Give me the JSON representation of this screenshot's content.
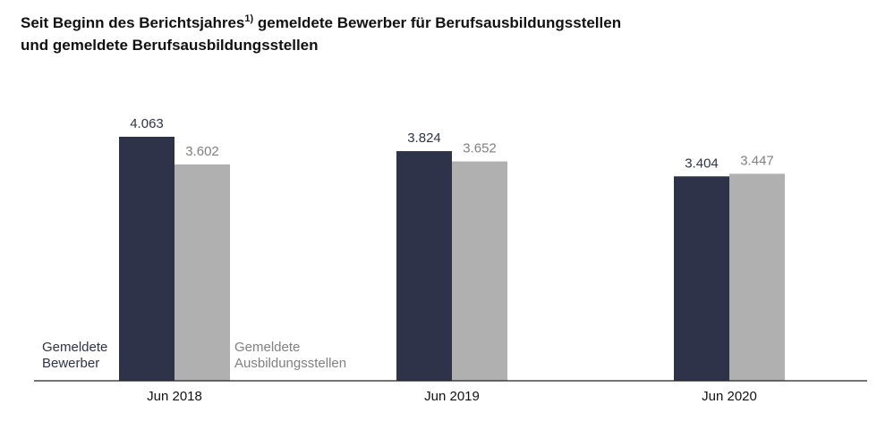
{
  "title": {
    "line1_pre": "Seit Beginn des Berichtsjahres",
    "footnote": "1)",
    "line1_post": " gemeldete Bewerber für Berufsausbildungsstellen",
    "line2": "und gemeldete Berufsausbildungsstellen"
  },
  "legend": {
    "bewerber": [
      "Gemeldete",
      "Bewerber"
    ],
    "stellen": [
      "Gemeldete",
      "Ausbildungsstellen"
    ]
  },
  "chart_data": {
    "type": "bar",
    "title": "Seit Beginn des Berichtsjahres1) gemeldete Bewerber für Berufsausbildungsstellen und gemeldete Berufsausbildungsstellen",
    "categories": [
      "Jun 2018",
      "Jun 2019",
      "Jun 2020"
    ],
    "series": [
      {
        "name": "Gemeldete Bewerber",
        "values": [
          4063,
          3824,
          3404
        ],
        "labels": [
          "4.063",
          "3.824",
          "3.404"
        ],
        "color": "#2e3349",
        "label_color": "#2e3349"
      },
      {
        "name": "Gemeldete Ausbildungsstellen",
        "values": [
          3602,
          3652,
          3447
        ],
        "labels": [
          "3.602",
          "3.652",
          "3.447"
        ],
        "color": "#b0b0b0",
        "label_color": "#808080"
      }
    ],
    "xlabel": "",
    "ylabel": "",
    "ylim": [
      0,
      4063
    ],
    "grid": false,
    "legend_position": "bottom-left-inside"
  }
}
